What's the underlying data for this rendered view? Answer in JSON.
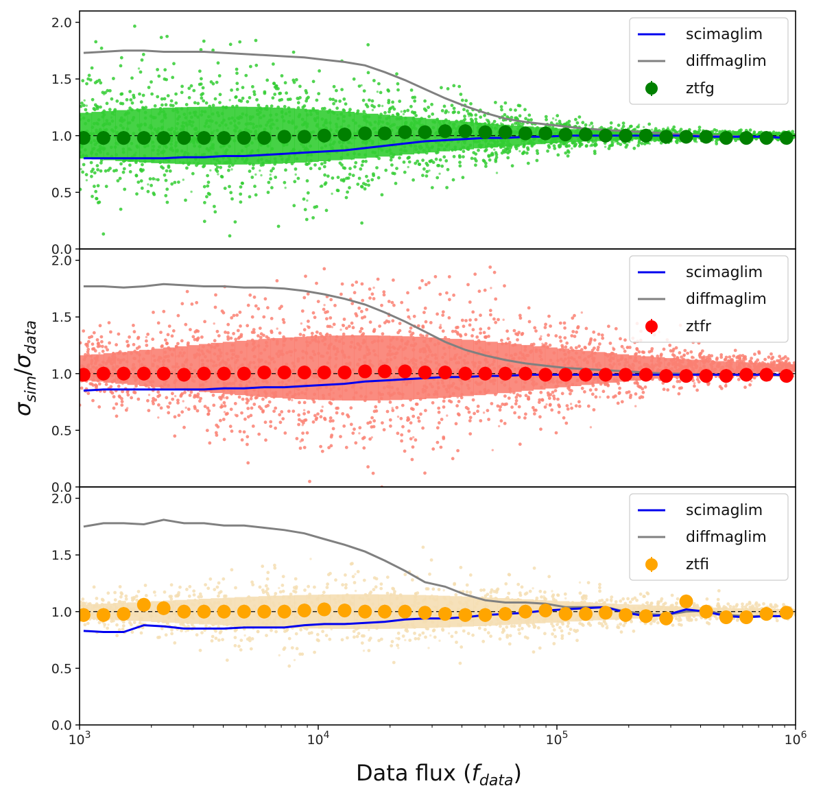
{
  "chart_data": {
    "type": "scatter",
    "shared_x": {
      "label_main": "Data flux (",
      "label_sym": "f",
      "label_sub": "data",
      "label_close": ")",
      "scale": "log",
      "xlim": [
        1000,
        1000000
      ],
      "tick_base": "10",
      "tick_exponents": [
        "3",
        "4",
        "5",
        "6"
      ]
    },
    "shared_y": {
      "label_sym1": "σ",
      "label_sub1": "sim",
      "label_slash": "/",
      "label_sym2": "σ",
      "label_sub2": "data",
      "ylim": [
        0,
        2.1
      ],
      "ticks": [
        "0.0",
        "0.5",
        "1.0",
        "1.5",
        "2.0"
      ]
    },
    "reference_line": 1.0,
    "x_bins": [
      1040,
      1260,
      1530,
      1860,
      2250,
      2740,
      3320,
      4030,
      4890,
      5940,
      7210,
      8750,
      10600,
      12900,
      15700,
      19000,
      23100,
      28000,
      34000,
      41300,
      50100,
      60800,
      73800,
      89600,
      108700,
      132000,
      160000,
      194000,
      236000,
      287000,
      348000,
      422000,
      512000,
      622000,
      755000,
      916000
    ],
    "panels": [
      {
        "band": "ztfg",
        "scatter_color": "#32cd32",
        "marker_color": "#008000",
        "legend": {
          "line1": "scimaglim",
          "line2": "diffmaglim",
          "marker": "ztfg",
          "line1_color": "#0000ee",
          "line2_color": "#808080"
        },
        "binned_ratio": [
          0.98,
          0.98,
          0.98,
          0.98,
          0.98,
          0.98,
          0.98,
          0.98,
          0.98,
          0.98,
          0.99,
          0.99,
          1.0,
          1.01,
          1.02,
          1.02,
          1.03,
          1.03,
          1.04,
          1.04,
          1.03,
          1.03,
          1.02,
          1.02,
          1.01,
          1.01,
          1.0,
          1.0,
          1.0,
          0.99,
          0.99,
          0.99,
          0.98,
          0.98,
          0.98,
          0.98
        ],
        "scimaglim": [
          0.8,
          0.8,
          0.8,
          0.8,
          0.8,
          0.81,
          0.81,
          0.82,
          0.82,
          0.83,
          0.84,
          0.85,
          0.86,
          0.87,
          0.89,
          0.91,
          0.93,
          0.95,
          0.96,
          0.97,
          0.98,
          0.98,
          0.99,
          0.99,
          1.0,
          1.0,
          1.0,
          1.0,
          1.0,
          1.0,
          1.0,
          0.99,
          0.99,
          0.99,
          0.99,
          0.98
        ],
        "diffmaglim": [
          1.73,
          1.74,
          1.75,
          1.75,
          1.74,
          1.74,
          1.74,
          1.73,
          1.72,
          1.71,
          1.7,
          1.69,
          1.67,
          1.65,
          1.62,
          1.56,
          1.49,
          1.41,
          1.33,
          1.26,
          1.2,
          1.15,
          1.12,
          1.1,
          1.08,
          1.06,
          1.05,
          1.04,
          1.03,
          1.02,
          1.01,
          1.0,
          1.0,
          0.99,
          0.99,
          0.98
        ],
        "scatter_envelope": {
          "center": 1.0,
          "max_spread": 0.55,
          "peak_flux": 4000,
          "points": 2600
        }
      },
      {
        "band": "ztfr",
        "scatter_color": "#fa8072",
        "marker_color": "#ff0000",
        "legend": {
          "line1": "scimaglim",
          "line2": "diffmaglim",
          "marker": "ztfr",
          "line1_color": "#0000ee",
          "line2_color": "#808080"
        },
        "binned_ratio": [
          0.99,
          1.0,
          1.0,
          1.0,
          1.0,
          0.99,
          1.0,
          1.0,
          1.0,
          1.01,
          1.01,
          1.01,
          1.01,
          1.01,
          1.02,
          1.02,
          1.02,
          1.01,
          1.01,
          1.0,
          1.0,
          1.0,
          1.0,
          0.99,
          0.99,
          0.99,
          0.99,
          0.99,
          0.99,
          0.98,
          0.98,
          0.98,
          0.98,
          0.99,
          0.99,
          0.98
        ],
        "scimaglim": [
          0.85,
          0.86,
          0.86,
          0.86,
          0.86,
          0.86,
          0.86,
          0.87,
          0.87,
          0.88,
          0.88,
          0.89,
          0.9,
          0.91,
          0.93,
          0.94,
          0.95,
          0.96,
          0.97,
          0.97,
          0.98,
          0.98,
          0.99,
          0.99,
          0.99,
          0.99,
          0.99,
          0.99,
          0.99,
          0.99,
          0.99,
          0.99,
          0.99,
          0.99,
          0.99,
          0.99
        ],
        "diffmaglim": [
          1.77,
          1.77,
          1.76,
          1.77,
          1.79,
          1.78,
          1.77,
          1.77,
          1.76,
          1.76,
          1.75,
          1.73,
          1.7,
          1.66,
          1.61,
          1.54,
          1.46,
          1.37,
          1.28,
          1.21,
          1.16,
          1.12,
          1.09,
          1.07,
          1.05,
          1.04,
          1.03,
          1.02,
          1.01,
          1.0,
          1.0,
          0.99,
          0.99,
          0.99,
          0.99,
          0.98
        ],
        "scatter_envelope": {
          "center": 1.05,
          "max_spread": 0.62,
          "peak_flux": 15000,
          "points": 2600
        }
      },
      {
        "band": "ztfi",
        "scatter_color": "#f5deb3",
        "marker_color": "#ffa500",
        "legend": {
          "line1": "scimaglim",
          "line2": "diffmaglim",
          "marker": "ztfi",
          "line1_color": "#0000ee",
          "line2_color": "#808080"
        },
        "binned_ratio": [
          0.97,
          0.97,
          0.98,
          1.06,
          1.03,
          1.0,
          1.0,
          1.0,
          1.0,
          1.0,
          1.0,
          1.01,
          1.02,
          1.01,
          1.0,
          1.0,
          1.0,
          0.99,
          0.98,
          0.97,
          0.97,
          0.98,
          1.0,
          1.01,
          0.98,
          0.98,
          0.99,
          0.97,
          0.96,
          0.94,
          1.09,
          1.0,
          0.95,
          0.95,
          0.98,
          0.99
        ],
        "scimaglim": [
          0.83,
          0.82,
          0.82,
          0.88,
          0.87,
          0.85,
          0.85,
          0.85,
          0.86,
          0.86,
          0.86,
          0.88,
          0.89,
          0.89,
          0.9,
          0.91,
          0.93,
          0.94,
          0.94,
          0.95,
          0.97,
          0.98,
          0.99,
          1.01,
          1.02,
          1.03,
          1.04,
          0.99,
          0.96,
          0.97,
          1.02,
          1.0,
          0.96,
          0.95,
          0.96,
          0.96
        ],
        "diffmaglim": [
          1.75,
          1.78,
          1.78,
          1.77,
          1.81,
          1.78,
          1.78,
          1.76,
          1.76,
          1.74,
          1.72,
          1.69,
          1.64,
          1.59,
          1.53,
          1.45,
          1.36,
          1.26,
          1.22,
          1.15,
          1.1,
          1.08,
          1.08,
          1.07,
          1.04,
          1.04,
          1.04,
          1.0,
          0.98,
          0.97,
          1.0,
          1.01,
          0.97,
          0.96,
          0.96,
          0.96
        ],
        "scatter_envelope": {
          "center": 1.0,
          "max_spread": 0.32,
          "peak_flux": 15000,
          "points": 1500
        }
      }
    ]
  }
}
